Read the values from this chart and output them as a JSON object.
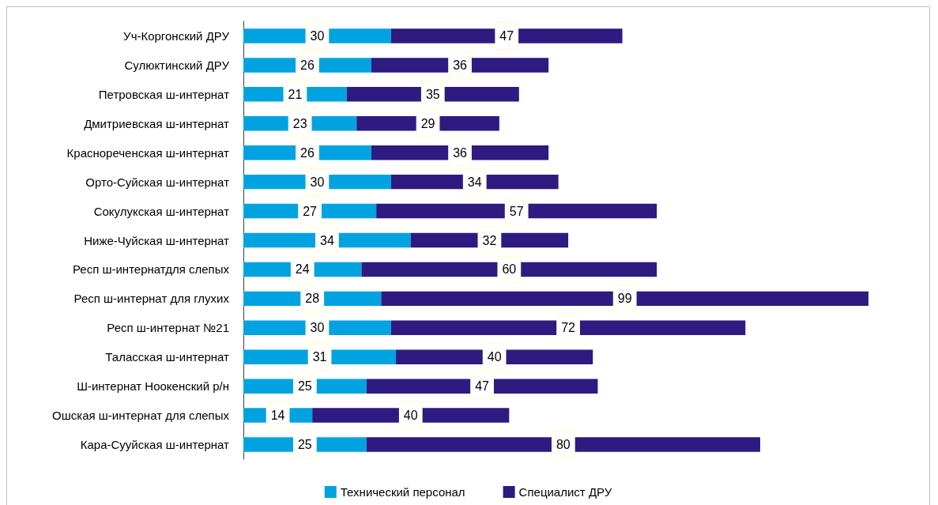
{
  "chart_data": {
    "type": "bar",
    "orientation": "horizontal",
    "stacked": true,
    "categories": [
      "Уч-Коргонский ДРУ",
      "Сулюктинский ДРУ",
      "Петровская ш-интернат",
      "Дмитриевская ш-интернат",
      "Краснореченская ш-интернат",
      "Орто-Суйская ш-интернат",
      "Сокулукская ш-интернат",
      "Ниже-Чуйская ш-интернат",
      "Респ ш-интернатдля слепых",
      "Респ ш-интернат для глухих",
      "Респ ш-интернат №21",
      "Таласская ш-интернат",
      "Ш-интернат Ноокенский р/н",
      "Ошская ш-интернат для слепых",
      "Кара-Сууйская ш-интернат"
    ],
    "series": [
      {
        "name": "Технический персонал",
        "color": "#00a3e0",
        "values": [
          30,
          26,
          21,
          23,
          26,
          30,
          27,
          34,
          24,
          28,
          30,
          31,
          25,
          14,
          25
        ]
      },
      {
        "name": "Специалист ДРУ",
        "color": "#2e1a80",
        "values": [
          47,
          36,
          35,
          29,
          36,
          34,
          57,
          32,
          60,
          99,
          72,
          40,
          47,
          40,
          80
        ]
      }
    ],
    "data_labels": true,
    "legend": "bottom",
    "grid": false,
    "tick_labels": "y"
  }
}
